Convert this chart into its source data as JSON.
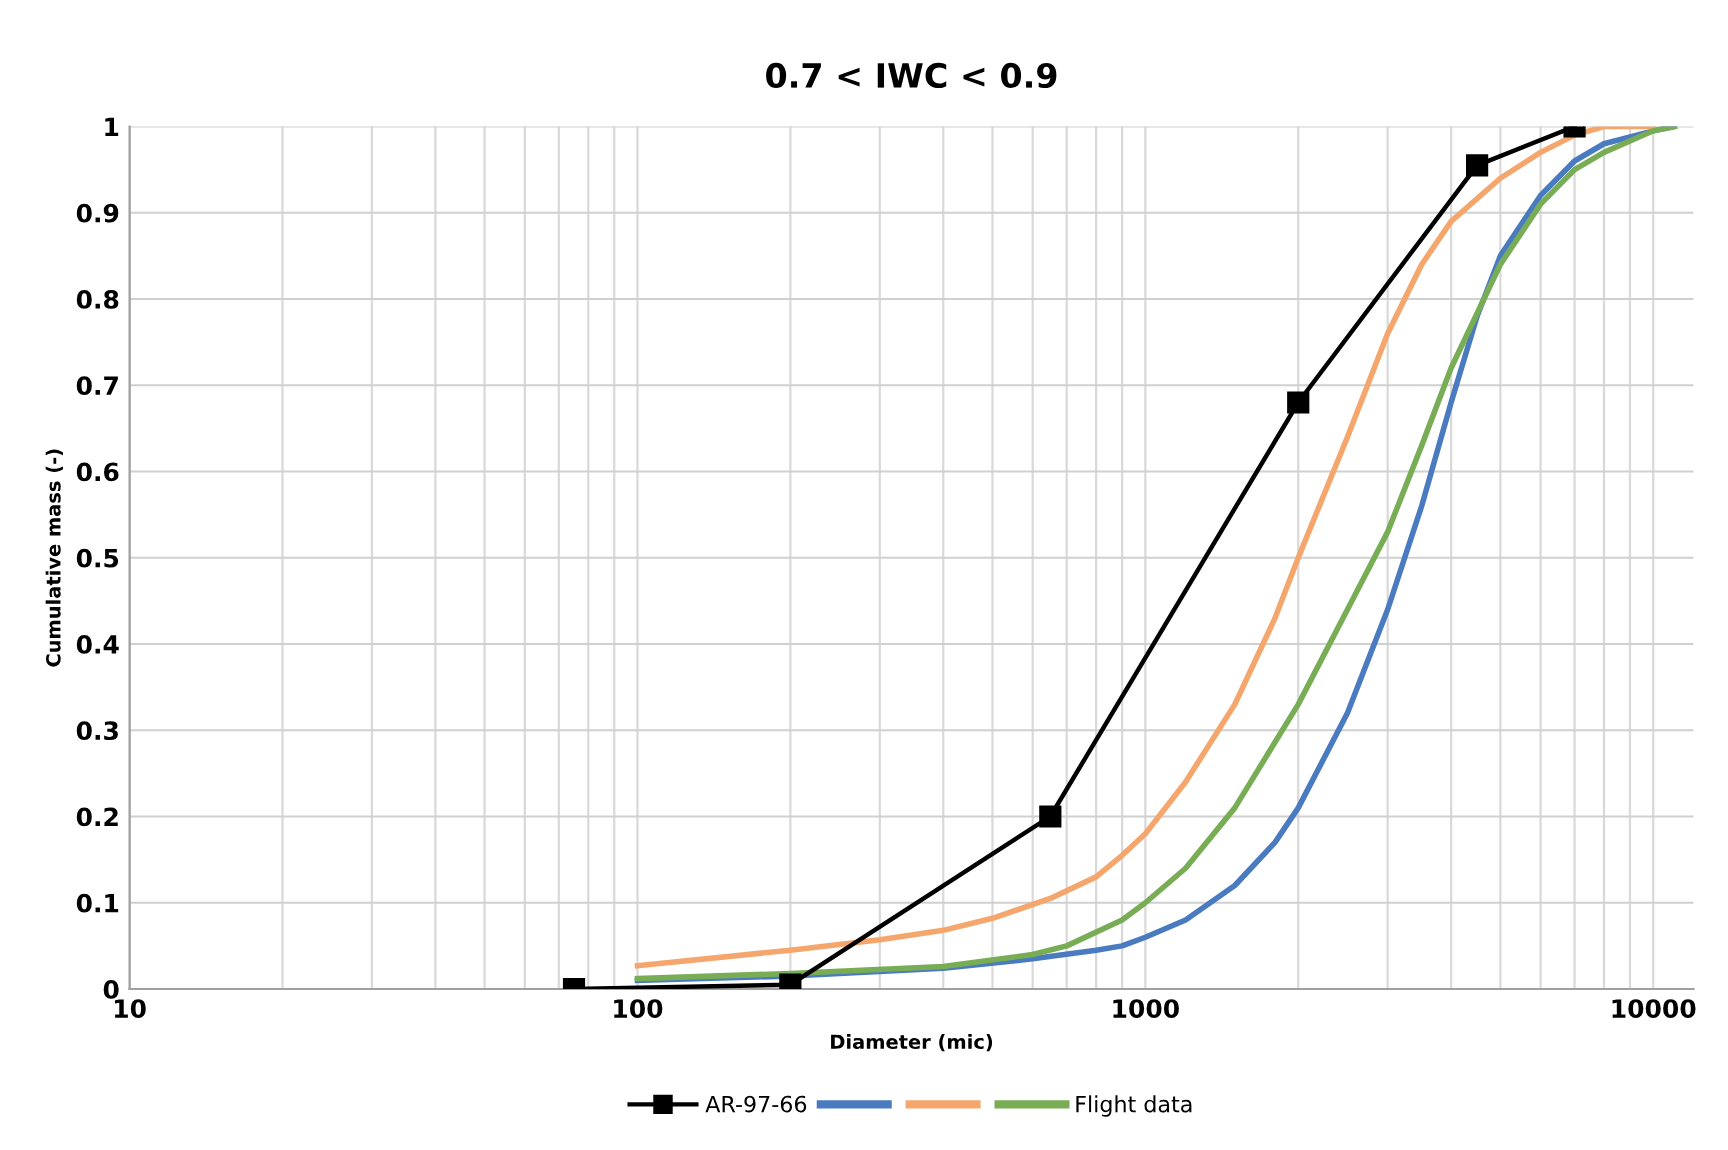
{
  "chart_data": {
    "type": "line",
    "title": "0.7 < IWC < 0.9",
    "xlabel": "Diameter (mic)",
    "ylabel": "Cumulative mass (-)",
    "log": "x",
    "xlim": [
      10,
      12000
    ],
    "xticks": [
      10,
      100,
      1000,
      10000
    ],
    "ylim": [
      0,
      1
    ],
    "yticks": [
      0,
      0.1,
      0.2,
      0.3,
      0.4,
      0.5,
      0.6,
      0.7,
      0.8,
      0.9,
      1
    ],
    "grid": true,
    "legend": "bottom",
    "line_style": "solid",
    "series": [
      {
        "name": "AR-97-66",
        "color": "#000000",
        "marker": "square",
        "x": [
          75,
          200,
          650,
          2000,
          4500,
          7000
        ],
        "values": [
          0,
          0.005,
          0.2,
          0.68,
          0.955,
          1
        ]
      },
      {
        "color": "#4a7bc0",
        "marker": "none",
        "x": [
          100,
          200,
          400,
          600,
          800,
          900,
          1000,
          1200,
          1500,
          1800,
          2000,
          2500,
          3000,
          3500,
          4000,
          4500,
          5000,
          6000,
          7000,
          8000,
          10000,
          11000
        ],
        "values": [
          0.01,
          0.015,
          0.024,
          0.035,
          0.045,
          0.05,
          0.06,
          0.08,
          0.12,
          0.17,
          0.21,
          0.32,
          0.44,
          0.56,
          0.68,
          0.78,
          0.85,
          0.92,
          0.96,
          0.98,
          0.995,
          1
        ]
      },
      {
        "color": "#f5a66c",
        "marker": "none",
        "x": [
          100,
          200,
          300,
          400,
          500,
          650,
          800,
          900,
          1000,
          1200,
          1500,
          1800,
          2000,
          2500,
          3000,
          3500,
          4000,
          5000,
          6000,
          7000,
          8000,
          10000
        ],
        "values": [
          0.027,
          0.045,
          0.057,
          0.068,
          0.082,
          0.105,
          0.13,
          0.155,
          0.18,
          0.24,
          0.33,
          0.43,
          0.5,
          0.64,
          0.76,
          0.84,
          0.89,
          0.94,
          0.97,
          0.99,
          1,
          1
        ]
      },
      {
        "name": "Flight data",
        "color": "#78ad55",
        "marker": "none",
        "x": [
          100,
          200,
          400,
          600,
          700,
          900,
          1000,
          1200,
          1500,
          2000,
          2500,
          3000,
          3500,
          4000,
          5000,
          6000,
          7000,
          8000,
          10000,
          11000
        ],
        "values": [
          0.012,
          0.018,
          0.026,
          0.04,
          0.05,
          0.08,
          0.1,
          0.14,
          0.21,
          0.33,
          0.44,
          0.53,
          0.63,
          0.72,
          0.84,
          0.91,
          0.95,
          0.97,
          0.995,
          1
        ]
      }
    ]
  }
}
